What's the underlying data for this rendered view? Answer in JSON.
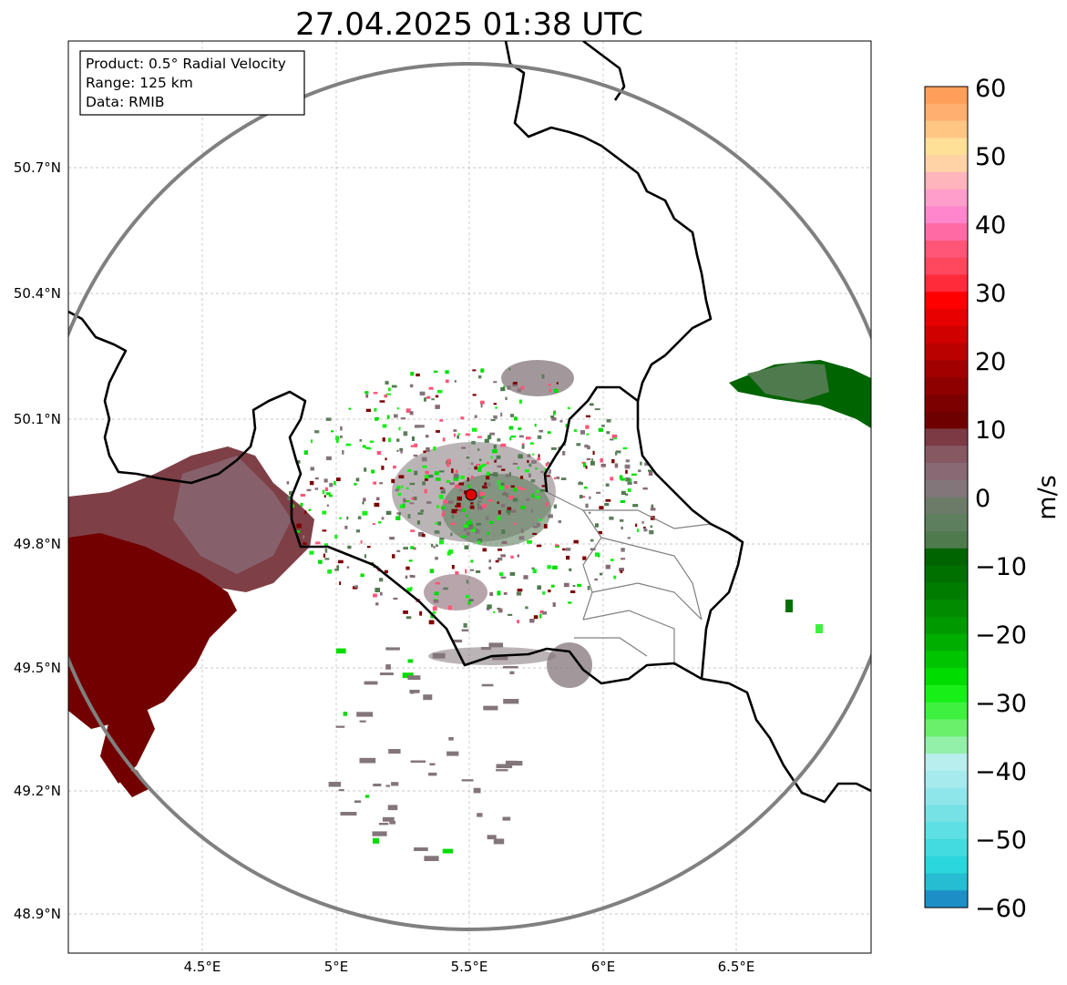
{
  "map": {
    "title": "27.04.2025 01:38 UTC",
    "info_box": {
      "line1": "Product: 0.5° Radial Velocity",
      "line2": "Range: 125 km",
      "line3": "Data: RMIB"
    },
    "lon_ticks": [
      "4.5°E",
      "5°E",
      "5.5°E",
      "6°E",
      "6.5°E"
    ],
    "lat_ticks": [
      "50.7°N",
      "50.4°N",
      "50.1°N",
      "49.8°N",
      "49.5°N",
      "49.2°N",
      "48.9°N"
    ],
    "radar_site_color": "#e00000",
    "range_ring_color": "#808080",
    "border_color": "#000000",
    "grid": true
  },
  "colorbar": {
    "label": "m/s",
    "ticks": [
      "60",
      "50",
      "40",
      "30",
      "20",
      "10",
      "0",
      "−10",
      "−20",
      "−30",
      "−40",
      "−50",
      "−60"
    ],
    "stops": [
      "#ff9f5a",
      "#ffb070",
      "#ffc583",
      "#ffe096",
      "#ffd3a6",
      "#ffb5bb",
      "#ff9ecb",
      "#ff86cd",
      "#ff6aa5",
      "#ff5577",
      "#ff475d",
      "#ff2a3a",
      "#ff0000",
      "#e80000",
      "#d10000",
      "#bb0000",
      "#a20000",
      "#8e0000",
      "#7d0000",
      "#6e0000",
      "#7c3a44",
      "#865862",
      "#886974",
      "#83767a",
      "#6c7b68",
      "#5e7f5d",
      "#4f7a4e",
      "#006400",
      "#007000",
      "#007d00",
      "#008b00",
      "#009a00",
      "#00ae00",
      "#00c400",
      "#00dc00",
      "#18ef18",
      "#40f040",
      "#6bf06b",
      "#93f0a8",
      "#b8eeee",
      "#a6eaee",
      "#8fe6ea",
      "#76e2e6",
      "#5ddfe3",
      "#43dbe0",
      "#2bd6dc",
      "#26bcd2",
      "#1e8fc6"
    ]
  }
}
